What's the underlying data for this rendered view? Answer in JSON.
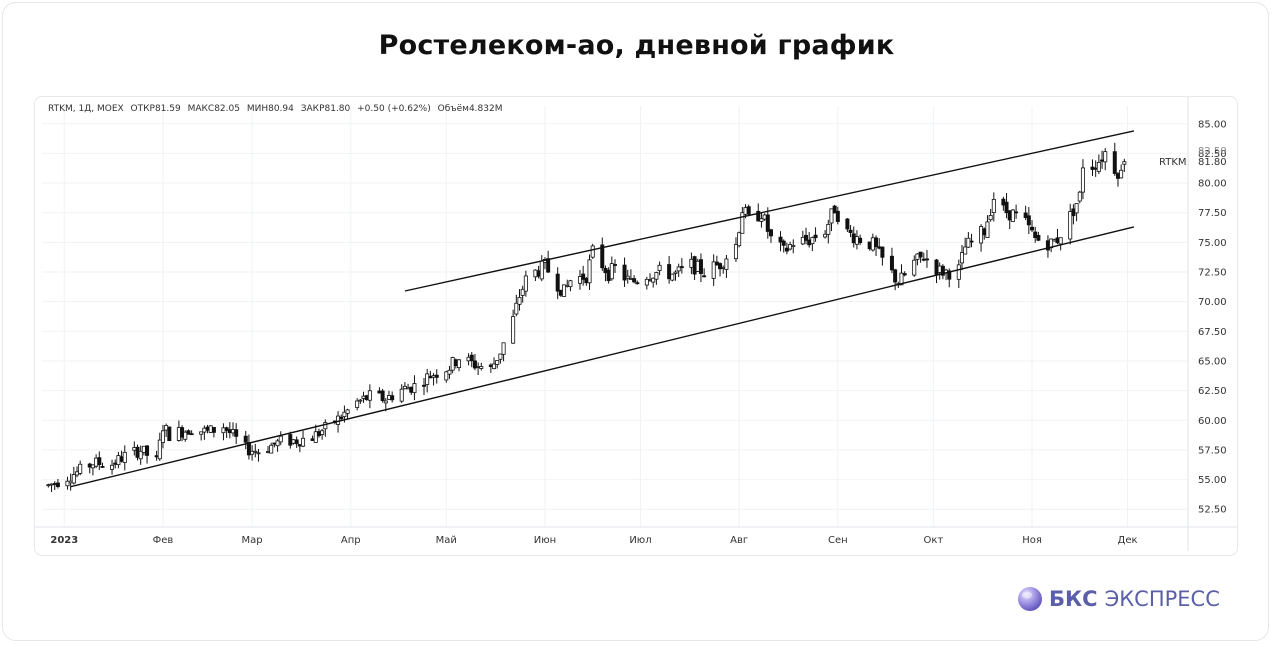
{
  "title": "Ростелеком-ао, дневной график",
  "brand": {
    "bold": "БКС",
    "thin": "ЭКСПРЕСС",
    "icon": "bks-sphere-logo"
  },
  "info": {
    "symbol": "RTKM, 1Д, MOEX",
    "open": "ОТКР81.59",
    "high": "МАКС82.05",
    "low": "МИН80.94",
    "close": "ЗАКР81.80",
    "change": "+0.50 (+0.62%)",
    "volume": "Объём4.832M"
  },
  "chart_data": {
    "type": "candlestick",
    "ticker_label": "RTKM",
    "last_price_label": "81.80",
    "hidden_tick_label": "82.50",
    "y_ticks": [
      "85.00",
      "82.50",
      "80.00",
      "77.50",
      "75.00",
      "72.50",
      "70.00",
      "67.50",
      "65.00",
      "62.50",
      "60.00",
      "57.50",
      "55.00",
      "52.50"
    ],
    "ylim": [
      51.0,
      86.5
    ],
    "x_labels": [
      {
        "label": "2023",
        "x": "2023-01-01"
      },
      {
        "label": "Фев",
        "x": "2023-02-01"
      },
      {
        "label": "Мар",
        "x": "2023-03-01"
      },
      {
        "label": "Апр",
        "x": "2023-04-01"
      },
      {
        "label": "Май",
        "x": "2023-05-01"
      },
      {
        "label": "Июн",
        "x": "2023-06-01"
      },
      {
        "label": "Июл",
        "x": "2023-07-01"
      },
      {
        "label": "Авг",
        "x": "2023-08-01"
      },
      {
        "label": "Сен",
        "x": "2023-09-01"
      },
      {
        "label": "Окт",
        "x": "2023-10-01"
      },
      {
        "label": "Ноя",
        "x": "2023-11-01"
      },
      {
        "label": "Дек",
        "x": "2023-12-01"
      }
    ],
    "xlim": [
      "2022-12-25",
      "2023-12-20"
    ],
    "trend_lines": [
      {
        "name": "upper-channel",
        "points": [
          [
            "2023-04-18",
            70.9
          ],
          [
            "2023-12-03",
            84.4
          ]
        ]
      },
      {
        "name": "lower-channel",
        "points": [
          [
            "2023-01-03",
            54.4
          ],
          [
            "2023-12-03",
            76.3
          ]
        ]
      }
    ],
    "last_candle": {
      "open": 81.59,
      "high": 82.05,
      "low": 80.94,
      "close": 81.8
    },
    "close_series": [
      [
        "2022-12-27",
        54.5
      ],
      [
        "2023-01-05",
        55.6
      ],
      [
        "2023-01-10",
        56.4
      ],
      [
        "2023-01-16",
        56.3
      ],
      [
        "2023-01-20",
        57.0
      ],
      [
        "2023-01-25",
        57.5
      ],
      [
        "2023-01-30",
        56.5
      ],
      [
        "2023-02-01",
        59.5
      ],
      [
        "2023-02-03",
        58.8
      ],
      [
        "2023-02-10",
        59.3
      ],
      [
        "2023-02-15",
        59.0
      ],
      [
        "2023-02-20",
        59.5
      ],
      [
        "2023-02-27",
        57.6
      ],
      [
        "2023-03-03",
        57.4
      ],
      [
        "2023-03-10",
        58.2
      ],
      [
        "2023-03-15",
        58.3
      ],
      [
        "2023-03-20",
        58.6
      ],
      [
        "2023-03-24",
        59.3
      ],
      [
        "2023-03-29",
        60.3
      ],
      [
        "2023-04-03",
        61.5
      ],
      [
        "2023-04-07",
        62.0
      ],
      [
        "2023-04-12",
        61.8
      ],
      [
        "2023-04-17",
        62.6
      ],
      [
        "2023-04-21",
        62.9
      ],
      [
        "2023-04-26",
        63.8
      ],
      [
        "2023-05-02",
        64.5
      ],
      [
        "2023-05-05",
        65.3
      ],
      [
        "2023-05-10",
        64.7
      ],
      [
        "2023-05-15",
        64.3
      ],
      [
        "2023-05-18",
        65.8
      ],
      [
        "2023-05-22",
        68.5
      ],
      [
        "2023-05-24",
        70.5
      ],
      [
        "2023-05-26",
        71.8
      ],
      [
        "2023-05-29",
        72.5
      ],
      [
        "2023-06-01",
        73.0
      ],
      [
        "2023-06-05",
        71.5
      ],
      [
        "2023-06-07",
        70.8
      ],
      [
        "2023-06-09",
        71.8
      ],
      [
        "2023-06-14",
        72.2
      ],
      [
        "2023-06-16",
        74.2
      ],
      [
        "2023-06-21",
        72.4
      ],
      [
        "2023-06-23",
        72.8
      ],
      [
        "2023-06-28",
        71.6
      ],
      [
        "2023-07-03",
        72.3
      ],
      [
        "2023-07-07",
        72.5
      ],
      [
        "2023-07-12",
        72.3
      ],
      [
        "2023-07-17",
        73.1
      ],
      [
        "2023-07-21",
        72.5
      ],
      [
        "2023-07-26",
        73.2
      ],
      [
        "2023-07-31",
        74.8
      ],
      [
        "2023-08-02",
        77.8
      ],
      [
        "2023-08-04",
        76.9
      ],
      [
        "2023-08-08",
        77.5
      ],
      [
        "2023-08-11",
        75.3
      ],
      [
        "2023-08-15",
        74.2
      ],
      [
        "2023-08-18",
        75.0
      ],
      [
        "2023-08-23",
        75.2
      ],
      [
        "2023-08-28",
        76.0
      ],
      [
        "2023-08-31",
        77.9
      ],
      [
        "2023-09-04",
        75.8
      ],
      [
        "2023-09-08",
        75.3
      ],
      [
        "2023-09-12",
        74.8
      ],
      [
        "2023-09-14",
        73.9
      ],
      [
        "2023-09-18",
        72.4
      ],
      [
        "2023-09-20",
        71.6
      ],
      [
        "2023-09-22",
        72.2
      ],
      [
        "2023-09-25",
        73.3
      ],
      [
        "2023-09-28",
        73.8
      ],
      [
        "2023-10-03",
        72.6
      ],
      [
        "2023-10-06",
        72.5
      ],
      [
        "2023-10-09",
        72.7
      ],
      [
        "2023-10-11",
        74.6
      ],
      [
        "2023-10-13",
        75.0
      ],
      [
        "2023-10-17",
        76.0
      ],
      [
        "2023-10-20",
        78.8
      ],
      [
        "2023-10-23",
        77.7
      ],
      [
        "2023-10-26",
        77.4
      ],
      [
        "2023-10-30",
        76.6
      ],
      [
        "2023-11-02",
        75.3
      ],
      [
        "2023-11-07",
        74.9
      ],
      [
        "2023-11-09",
        75.3
      ],
      [
        "2023-11-13",
        77.2
      ],
      [
        "2023-11-16",
        78.9
      ],
      [
        "2023-11-17",
        81.6
      ],
      [
        "2023-11-20",
        81.5
      ],
      [
        "2023-11-22",
        81.9
      ],
      [
        "2023-11-24",
        82.6
      ],
      [
        "2023-11-27",
        81.3
      ],
      [
        "2023-11-29",
        80.8
      ],
      [
        "2023-11-30",
        81.3
      ],
      [
        "2023-12-01",
        81.8
      ]
    ],
    "grid": true
  }
}
